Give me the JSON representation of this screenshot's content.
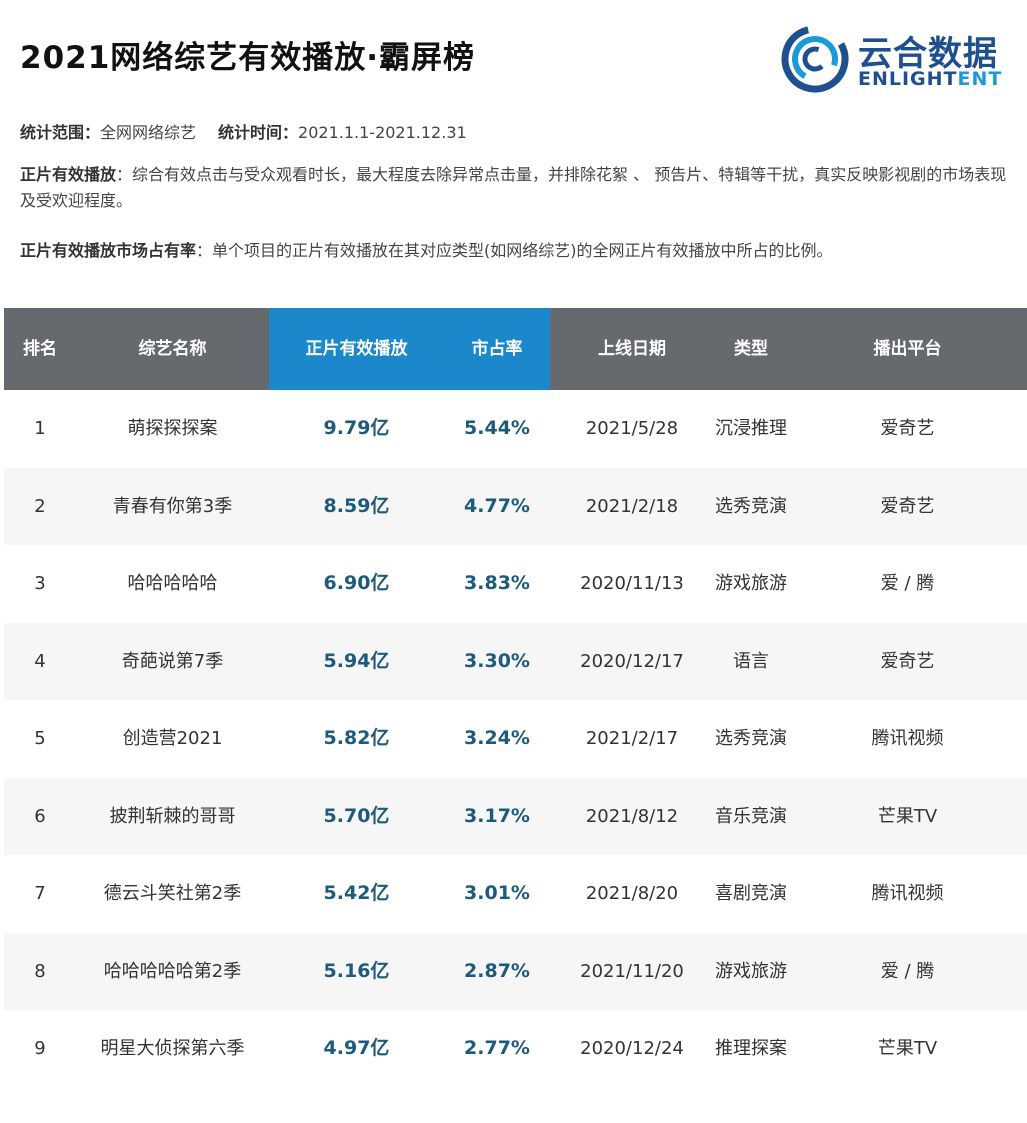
{
  "header": {
    "title": "2021网络综艺有效播放·霸屏榜",
    "logo_cn": "云合数据",
    "logo_en_main": "ENLIGHT",
    "logo_en_accent": "ENT"
  },
  "meta": {
    "scope_label": "统计范围：",
    "scope_value": "全网网络综艺",
    "time_label": "统计时间：",
    "time_value": "2021.1.1-2021.12.31",
    "def1_label": "正片有效播放",
    "def1_text": "：综合有效点击与受众观看时长，最大程度去除异常点击量，并排除花絮 、 预告片、特辑等干扰，真实反映影视剧的市场表现及受欢迎程度。",
    "def2_label": "正片有效播放市场占有率",
    "def2_text": "：单个项目的正片有效播放在其对应类型(如网络综艺)的全网正片有效播放中所占的比例。"
  },
  "colors": {
    "header_bg": "#666a6f",
    "header_highlight": "#1b88cc",
    "value_text": "#1d5a7c",
    "logo_blue": "#1e4f8f"
  },
  "table": {
    "columns": [
      "排名",
      "综艺名称",
      "正片有效播放",
      "市占率",
      "上线日期",
      "类型",
      "播出平台"
    ],
    "rows": [
      {
        "rank": "1",
        "name": "萌探探探案",
        "plays": "9.79亿",
        "share": "5.44%",
        "date": "2021/5/28",
        "type": "沉浸推理",
        "platform": "爱奇艺"
      },
      {
        "rank": "2",
        "name": "青春有你第3季",
        "plays": "8.59亿",
        "share": "4.77%",
        "date": "2021/2/18",
        "type": "选秀竞演",
        "platform": "爱奇艺"
      },
      {
        "rank": "3",
        "name": "哈哈哈哈哈",
        "plays": "6.90亿",
        "share": "3.83%",
        "date": "2020/11/13",
        "type": "游戏旅游",
        "platform": "爱 / 腾"
      },
      {
        "rank": "4",
        "name": "奇葩说第7季",
        "plays": "5.94亿",
        "share": "3.30%",
        "date": "2020/12/17",
        "type": "语言",
        "platform": "爱奇艺"
      },
      {
        "rank": "5",
        "name": "创造营2021",
        "plays": "5.82亿",
        "share": "3.24%",
        "date": "2021/2/17",
        "type": "选秀竞演",
        "platform": "腾讯视频"
      },
      {
        "rank": "6",
        "name": "披荆斩棘的哥哥",
        "plays": "5.70亿",
        "share": "3.17%",
        "date": "2021/8/12",
        "type": "音乐竞演",
        "platform": "芒果TV"
      },
      {
        "rank": "7",
        "name": "德云斗笑社第2季",
        "plays": "5.42亿",
        "share": "3.01%",
        "date": "2021/8/20",
        "type": "喜剧竞演",
        "platform": "腾讯视频"
      },
      {
        "rank": "8",
        "name": "哈哈哈哈哈第2季",
        "plays": "5.16亿",
        "share": "2.87%",
        "date": "2021/11/20",
        "type": "游戏旅游",
        "platform": "爱 / 腾"
      },
      {
        "rank": "9",
        "name": "明星大侦探第六季",
        "plays": "4.97亿",
        "share": "2.77%",
        "date": "2020/12/24",
        "type": "推理探案",
        "platform": "芒果TV"
      }
    ]
  }
}
